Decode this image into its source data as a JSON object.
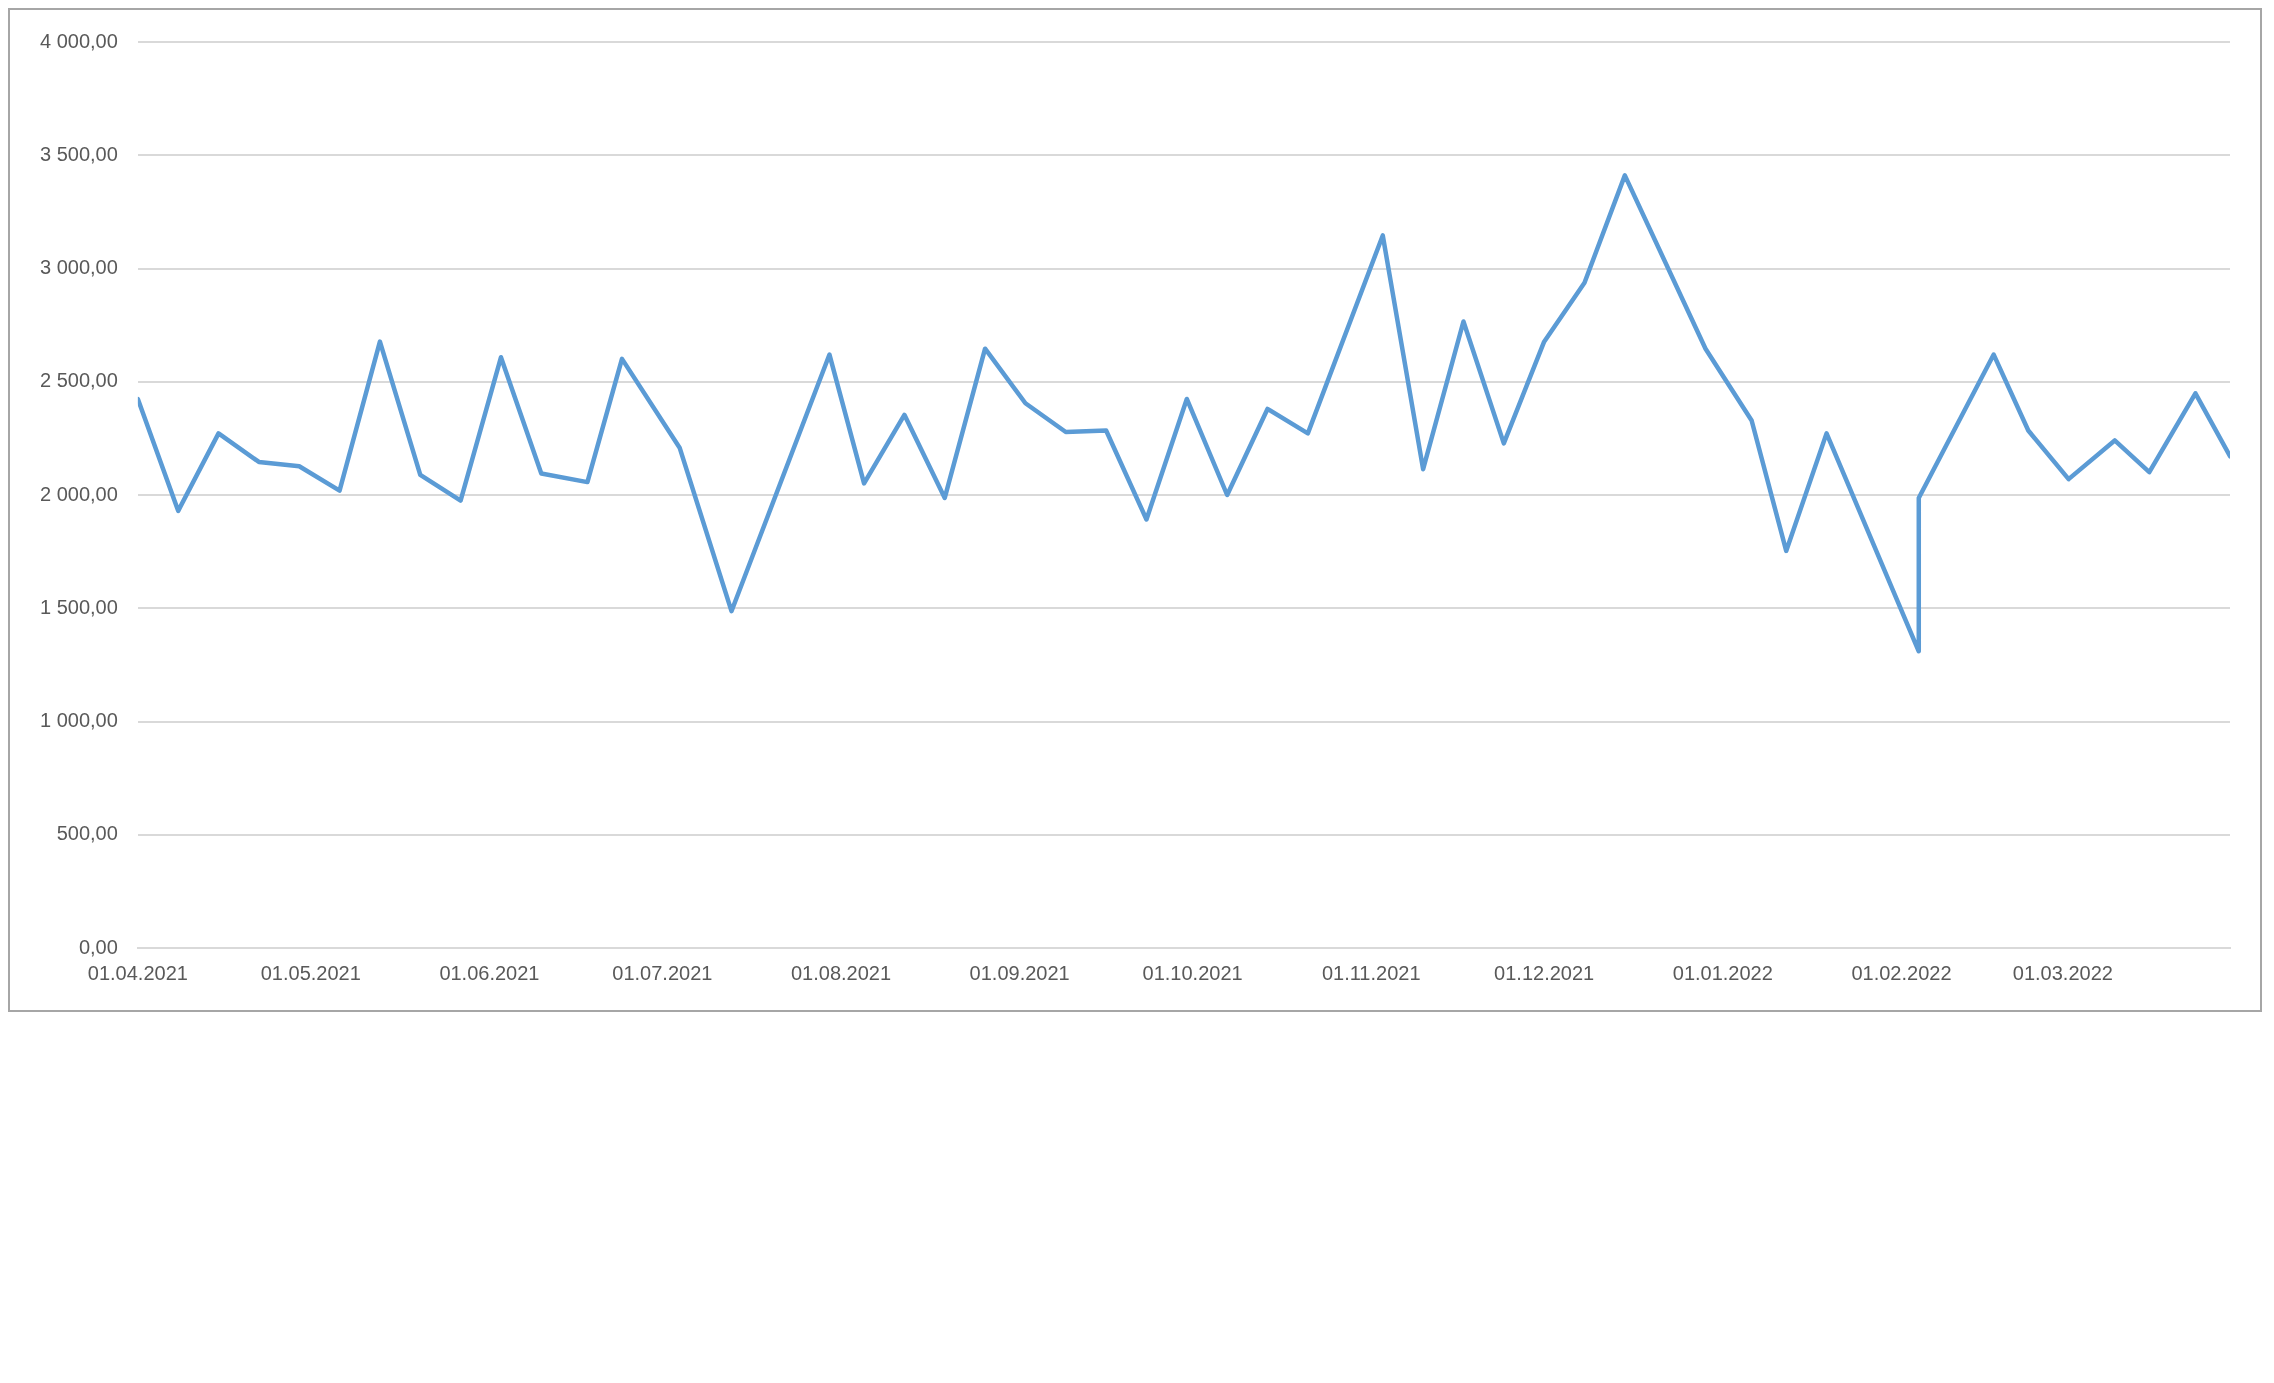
{
  "chart_data": {
    "type": "line",
    "x": [
      "2021-04-01",
      "2021-04-08",
      "2021-04-15",
      "2021-04-22",
      "2021-04-29",
      "2021-05-06",
      "2021-05-13",
      "2021-05-20",
      "2021-05-27",
      "2021-06-03",
      "2021-06-10",
      "2021-06-18",
      "2021-06-24",
      "2021-07-04",
      "2021-07-13",
      "2021-07-30",
      "2021-08-05",
      "2021-08-12",
      "2021-08-19",
      "2021-08-26",
      "2021-09-02",
      "2021-09-09",
      "2021-09-16",
      "2021-09-23",
      "2021-09-30",
      "2021-10-07",
      "2021-10-14",
      "2021-10-21",
      "2021-11-03",
      "2021-11-10",
      "2021-11-17",
      "2021-11-24",
      "2021-12-01",
      "2021-12-08",
      "2021-12-15",
      "2021-12-29",
      "2022-01-06",
      "2022-01-12",
      "2022-01-19",
      "2022-02-04",
      "2022-02-04",
      "2022-02-17",
      "2022-02-23",
      "2022-03-02",
      "2022-03-10",
      "2022-03-16",
      "2022-03-24",
      "2022-03-30"
    ],
    "series": [
      {
        "color": "#5b9bd5",
        "values": [
          2424,
          1930,
          2272,
          2146,
          2127,
          2019,
          2677,
          2089,
          1975,
          2608,
          2095,
          2057,
          2601,
          2209,
          1487,
          2620,
          2051,
          2354,
          1987,
          2646,
          2405,
          2278,
          2285,
          1892,
          2424,
          2000,
          2380,
          2272,
          3146,
          2114,
          2766,
          2228,
          2677,
          2937,
          3411,
          2646,
          2329,
          1753,
          2272,
          1310,
          1987,
          2620,
          2285,
          2070,
          2241,
          2101,
          2449,
          2171
        ]
      }
    ],
    "xlim": [
      "2021-04-01",
      "2022-03-30"
    ],
    "xticks": [
      {
        "value": "2021-04-01",
        "label": "01.04.2021"
      },
      {
        "value": "2021-05-01",
        "label": "01.05.2021"
      },
      {
        "value": "2021-06-01",
        "label": "01.06.2021"
      },
      {
        "value": "2021-07-01",
        "label": "01.07.2021"
      },
      {
        "value": "2021-08-01",
        "label": "01.08.2021"
      },
      {
        "value": "2021-09-01",
        "label": "01.09.2021"
      },
      {
        "value": "2021-10-01",
        "label": "01.10.2021"
      },
      {
        "value": "2021-11-01",
        "label": "01.11.2021"
      },
      {
        "value": "2021-12-01",
        "label": "01.12.2021"
      },
      {
        "value": "2022-01-01",
        "label": "01.01.2022"
      },
      {
        "value": "2022-02-01",
        "label": "01.02.2022"
      },
      {
        "value": "2022-03-01",
        "label": "01.03.2022"
      }
    ],
    "ylim": [
      0,
      4000
    ],
    "yticks": [
      {
        "value": 0,
        "label": "0,00"
      },
      {
        "value": 500,
        "label": "500,00"
      },
      {
        "value": 1000,
        "label": "1 000,00"
      },
      {
        "value": 1500,
        "label": "1 500,00"
      },
      {
        "value": 2000,
        "label": "2 000,00"
      },
      {
        "value": 2500,
        "label": "2 500,00"
      },
      {
        "value": 3000,
        "label": "3 000,00"
      },
      {
        "value": 3500,
        "label": "3 500,00"
      },
      {
        "value": 4000,
        "label": "4 000,00"
      }
    ],
    "grid": "y",
    "legend": false,
    "marker": "none",
    "line_style": "solid"
  }
}
